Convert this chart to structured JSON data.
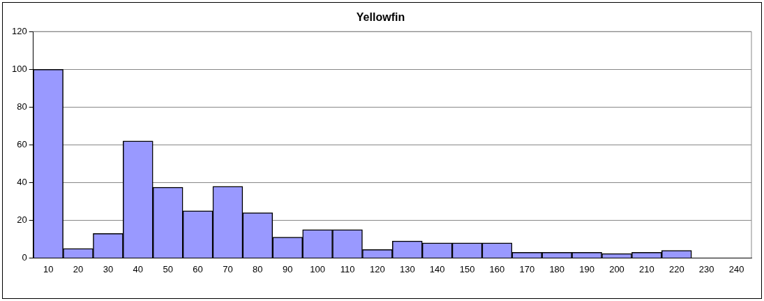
{
  "chart_data": {
    "type": "bar",
    "title": "Yellowfin",
    "categories": [
      "10",
      "20",
      "30",
      "40",
      "50",
      "60",
      "70",
      "80",
      "90",
      "100",
      "110",
      "120",
      "130",
      "140",
      "150",
      "160",
      "170",
      "180",
      "190",
      "200",
      "210",
      "220",
      "230",
      "240"
    ],
    "values": [
      100,
      5,
      13,
      62,
      37.5,
      25,
      38,
      24,
      11,
      15,
      15,
      4.5,
      9,
      8,
      8,
      8,
      3,
      3,
      3,
      2.3,
      3,
      4,
      0,
      0
    ],
    "color": "#9999ff",
    "ylim": [
      0,
      120
    ],
    "yticks": [
      0,
      20,
      40,
      60,
      80,
      100,
      120
    ],
    "grid": "y",
    "legend": false
  }
}
